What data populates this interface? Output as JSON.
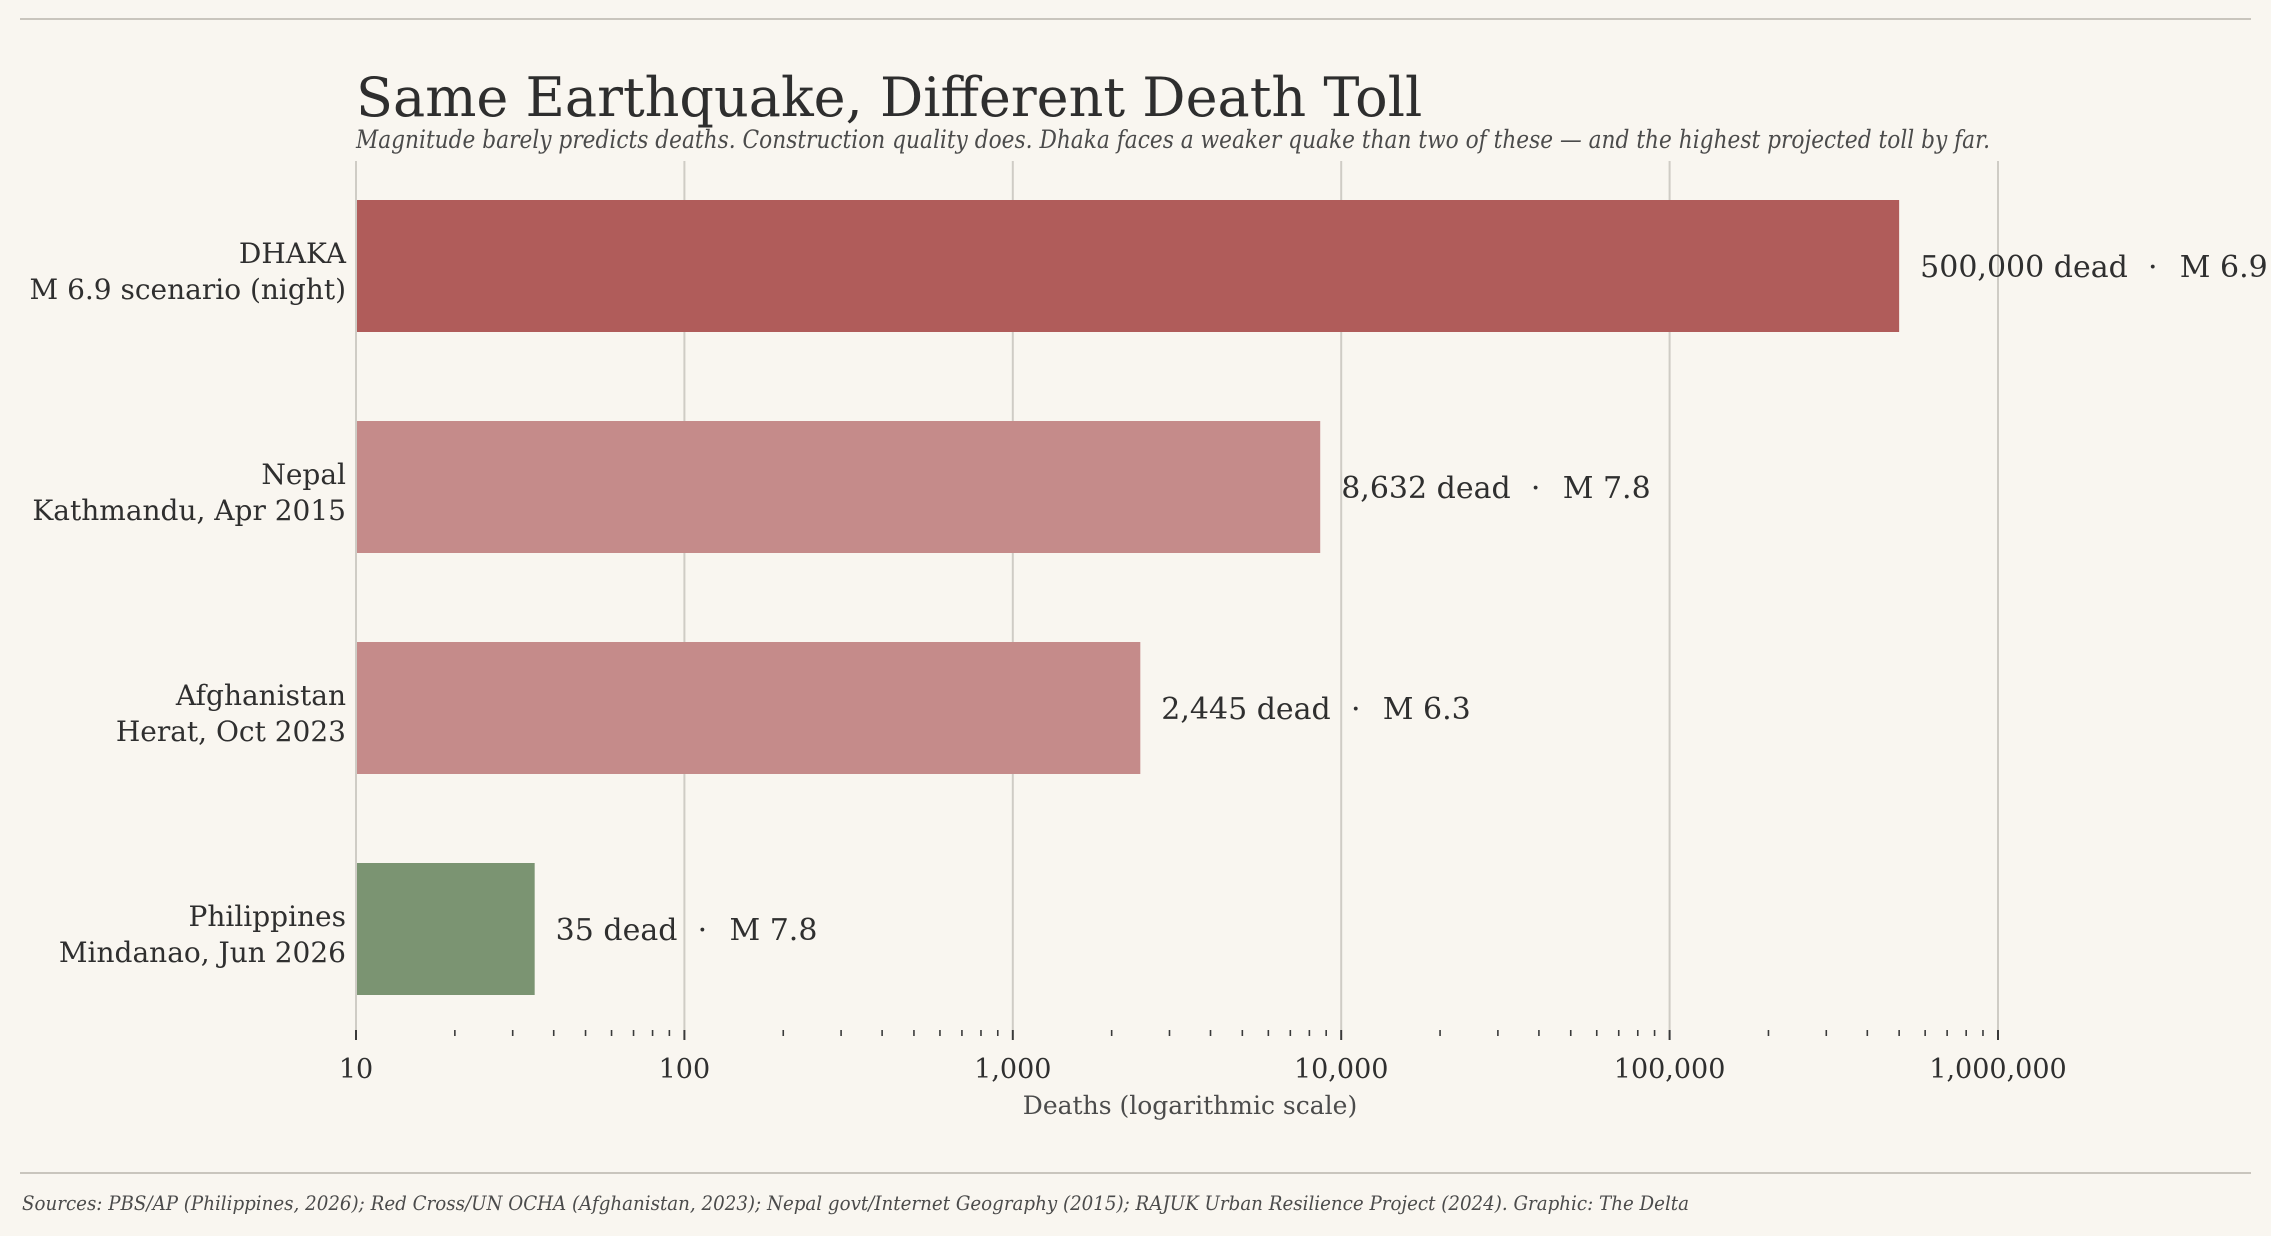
{
  "chart_data": {
    "type": "bar",
    "orientation": "horizontal",
    "title": "Same Earthquake, Different Death Toll",
    "subtitle": "Magnitude barely predicts deaths. Construction quality does. Dhaka faces a weaker quake than two of these — and the highest projected toll by far.",
    "xlabel": "Deaths (logarithmic scale)",
    "xscale": "log",
    "xlim": [
      10,
      1000000
    ],
    "grid": true,
    "legend": "none",
    "xticks": [
      {
        "value": 10,
        "label": "10"
      },
      {
        "value": 100,
        "label": "100"
      },
      {
        "value": 1000,
        "label": "1,000"
      },
      {
        "value": 10000,
        "label": "10,000"
      },
      {
        "value": 100000,
        "label": "100,000"
      },
      {
        "value": 1000000,
        "label": "1,000,000"
      }
    ],
    "bars": [
      {
        "name": "DHAKA",
        "sub": "M 6.9 scenario (night)",
        "value": 500000,
        "label": "500,000 dead",
        "magnitude": "M 6.9",
        "color": "#b05c5a"
      },
      {
        "name": "Nepal",
        "sub": "Kathmandu, Apr 2015",
        "value": 8632,
        "label": "8,632 dead",
        "magnitude": "M 7.8",
        "color": "#c58b8a"
      },
      {
        "name": "Afghanistan",
        "sub": "Herat, Oct 2023",
        "value": 2445,
        "label": "2,445 dead",
        "magnitude": "M 6.3",
        "color": "#c58b8a"
      },
      {
        "name": "Philippines",
        "sub": "Mindanao, Jun 2026",
        "value": 35,
        "label": "35 dead",
        "magnitude": "M 7.8",
        "color": "#7b9472"
      }
    ],
    "separator": "·",
    "source": "Sources: PBS/AP (Philippines, 2026); Red Cross/UN OCHA (Afghanistan, 2023); Nepal govt/Internet Geography (2015); RAJUK Urban Resilience Project (2024). Graphic: The Delta"
  }
}
